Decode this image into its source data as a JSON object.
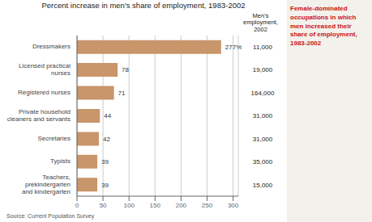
{
  "chart_data": {
    "type": "bar",
    "orientation": "horizontal",
    "title": "Percent increase in men's share of employment, 1983-2002",
    "categories": [
      "Dressmakers",
      "Licensed practical\nnurses",
      "Registered nurses",
      "Private household\ncleaners and servants",
      "Secretaries",
      "Typists",
      "Teachers,\nprekindergarten\nand kindergarten"
    ],
    "values": [
      277,
      78,
      71,
      44,
      42,
      39,
      39
    ],
    "value_labels": [
      "277%",
      "78",
      "71",
      "44",
      "42",
      "39",
      "39"
    ],
    "data_labels": true,
    "color": "#c9956a",
    "xlim": [
      0,
      310
    ],
    "xticks": [
      0,
      50,
      100,
      150,
      200,
      250,
      300
    ],
    "grid": true,
    "column": {
      "header": "Men's\nemployment,\n2002",
      "values": [
        "11,000",
        "19,000",
        "164,000",
        "31,000",
        "31,000",
        "35,000",
        "15,000"
      ]
    },
    "annotations": [
      {
        "text": "Female-dominated\noccupations in which\nmen increased their\nshare of employment,\n1983-2002",
        "color": "#cc1111"
      },
      {
        "text": "Source: Current Population Survey"
      }
    ]
  }
}
